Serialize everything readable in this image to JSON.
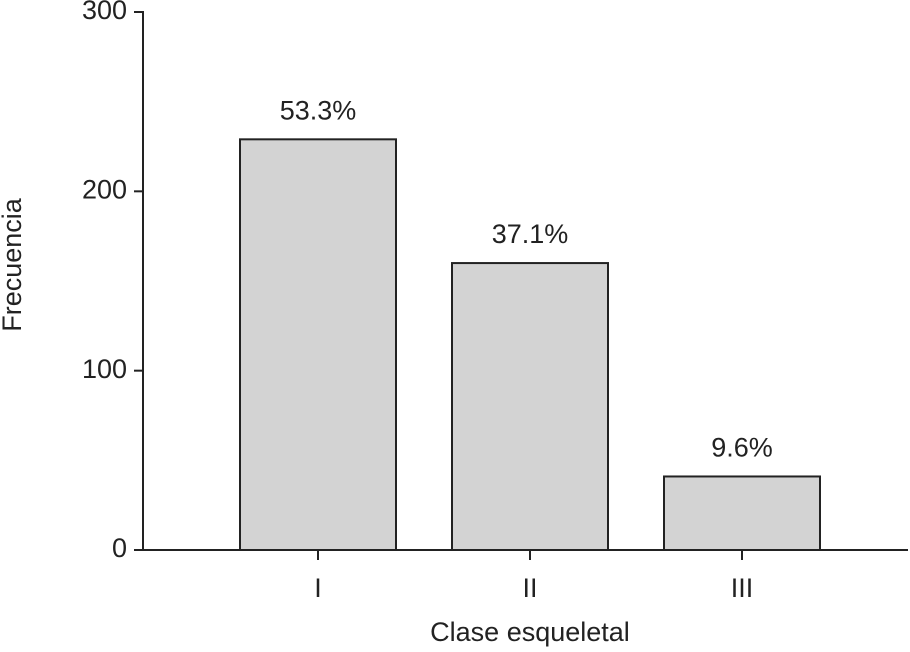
{
  "chart_data": {
    "type": "bar",
    "categories": [
      "I",
      "II",
      "III"
    ],
    "values": [
      229,
      160,
      41
    ],
    "bar_labels": [
      "53.3%",
      "37.1%",
      "9.6%"
    ],
    "color": "#d3d3d3",
    "x_label": "Clase esqueletal",
    "y_label": "Frecuencia",
    "ylim": [
      0,
      300
    ],
    "yticks": [
      0,
      100,
      200,
      300
    ],
    "grid": false
  }
}
